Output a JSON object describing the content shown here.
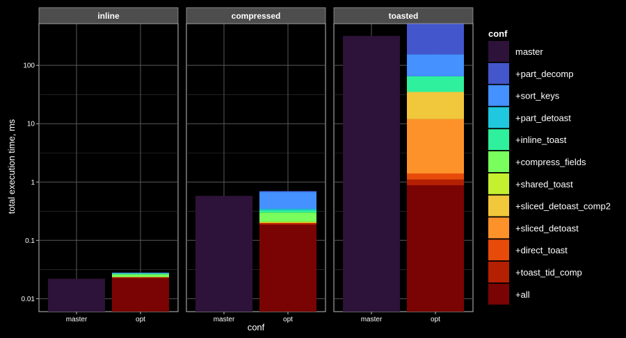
{
  "chart_data": {
    "type": "bar",
    "stacked": true,
    "y_scale": "log10",
    "ylabel": "total execution time, ms",
    "xlabel": "conf",
    "y_ticks": [
      0.01,
      0.1,
      1,
      10,
      100
    ],
    "y_tick_labels": [
      "0.01",
      "0.1",
      "1",
      "10",
      "100"
    ],
    "ylim": [
      0.006,
      520
    ],
    "grid": true,
    "legend_placement": "right",
    "legend_title": "conf",
    "categories": [
      "master",
      "opt"
    ],
    "series": [
      {
        "name": "master",
        "color": "#2d1239"
      },
      {
        "name": "+part_decomp",
        "color": "#4456cc"
      },
      {
        "name": "+sort_keys",
        "color": "#4491ff"
      },
      {
        "name": "+part_detoast",
        "color": "#1fc8de"
      },
      {
        "name": "+inline_toast",
        "color": "#2ff09c"
      },
      {
        "name": "+compress_fields",
        "color": "#79fe5e"
      },
      {
        "name": "+shared_toast",
        "color": "#c4f030"
      },
      {
        "name": "+sliced_detoast_comp2",
        "color": "#f1c73b"
      },
      {
        "name": "+sliced_detoast",
        "color": "#fe922a"
      },
      {
        "name": "+direct_toast",
        "color": "#e84a0a"
      },
      {
        "name": "+toast_tid_comp",
        "color": "#b52003"
      },
      {
        "name": "+all",
        "color": "#7a0403"
      }
    ],
    "panels": [
      {
        "title": "inline",
        "bars": [
          {
            "category": "master",
            "segments": [
              {
                "series": "master",
                "top": 0.022
              }
            ]
          },
          {
            "category": "opt",
            "segments": [
              {
                "series": "+all",
                "top": 0.0225
              },
              {
                "series": "+toast_tid_comp",
                "top": 0.023
              },
              {
                "series": "+direct_toast",
                "top": 0.0235
              },
              {
                "series": "+compress_fields",
                "top": 0.0262
              },
              {
                "series": "+inline_toast",
                "top": 0.0272
              },
              {
                "series": "+part_detoast",
                "top": 0.0276
              },
              {
                "series": "+sort_keys",
                "top": 0.0279
              },
              {
                "series": "+part_decomp",
                "top": 0.028
              }
            ]
          }
        ]
      },
      {
        "title": "compressed",
        "bars": [
          {
            "category": "master",
            "segments": [
              {
                "series": "master",
                "top": 0.58
              }
            ]
          },
          {
            "category": "opt",
            "segments": [
              {
                "series": "+all",
                "top": 0.185
              },
              {
                "series": "+toast_tid_comp",
                "top": 0.195
              },
              {
                "series": "+direct_toast",
                "top": 0.2
              },
              {
                "series": "+shared_toast",
                "top": 0.21
              },
              {
                "series": "+compress_fields",
                "top": 0.3
              },
              {
                "series": "+inline_toast",
                "top": 0.33
              },
              {
                "series": "+part_detoast",
                "top": 0.35
              },
              {
                "series": "+sort_keys",
                "top": 0.68
              },
              {
                "series": "+part_decomp",
                "top": 0.7
              }
            ]
          }
        ]
      },
      {
        "title": "toasted",
        "bars": [
          {
            "category": "master",
            "segments": [
              {
                "series": "master",
                "top": 320
              }
            ]
          },
          {
            "category": "opt",
            "segments": [
              {
                "series": "+all",
                "top": 0.88
              },
              {
                "series": "+toast_tid_comp",
                "top": 1.1
              },
              {
                "series": "+direct_toast",
                "top": 1.4
              },
              {
                "series": "+sliced_detoast",
                "top": 12
              },
              {
                "series": "+sliced_detoast_comp2",
                "top": 35
              },
              {
                "series": "+inline_toast",
                "top": 65
              },
              {
                "series": "+sort_keys",
                "top": 155
              },
              {
                "series": "+part_decomp",
                "top": 520
              }
            ]
          }
        ]
      }
    ]
  }
}
